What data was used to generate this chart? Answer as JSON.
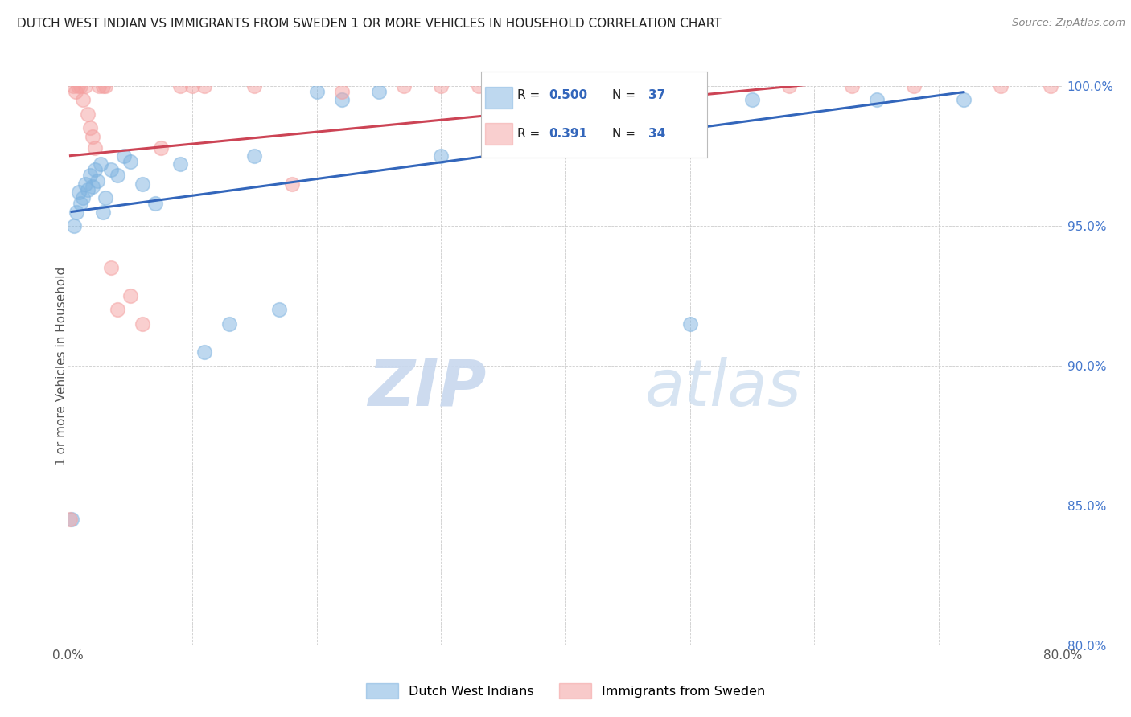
{
  "title": "DUTCH WEST INDIAN VS IMMIGRANTS FROM SWEDEN 1 OR MORE VEHICLES IN HOUSEHOLD CORRELATION CHART",
  "source": "Source: ZipAtlas.com",
  "ylabel": "1 or more Vehicles in Household",
  "xlim": [
    0.0,
    80.0
  ],
  "ylim": [
    80.0,
    100.0
  ],
  "xticks": [
    0.0,
    10.0,
    20.0,
    30.0,
    40.0,
    50.0,
    60.0,
    70.0,
    80.0
  ],
  "yticks": [
    80.0,
    85.0,
    90.0,
    95.0,
    100.0
  ],
  "xtick_labels": [
    "0.0%",
    "",
    "",
    "",
    "",
    "",
    "",
    "",
    "80.0%"
  ],
  "ytick_labels": [
    "80.0%",
    "85.0%",
    "90.0%",
    "95.0%",
    "100.0%"
  ],
  "blue_color": "#7EB3E0",
  "pink_color": "#F4A0A0",
  "blue_line_color": "#3366BB",
  "pink_line_color": "#CC4455",
  "blue_label": "Dutch West Indians",
  "pink_label": "Immigrants from Sweden",
  "blue_R": "0.500",
  "blue_N": "37",
  "pink_R": "0.391",
  "pink_N": "34",
  "blue_scatter_x": [
    0.3,
    0.5,
    0.7,
    0.9,
    1.0,
    1.2,
    1.4,
    1.6,
    1.8,
    2.0,
    2.2,
    2.4,
    2.6,
    2.8,
    3.0,
    3.5,
    4.0,
    4.5,
    5.0,
    6.0,
    7.0,
    9.0,
    11.0,
    13.0,
    15.0,
    17.0,
    20.0,
    22.0,
    25.0,
    30.0,
    35.0,
    40.0,
    45.0,
    50.0,
    55.0,
    65.0,
    72.0
  ],
  "blue_scatter_y": [
    84.5,
    95.0,
    95.5,
    96.2,
    95.8,
    96.0,
    96.5,
    96.3,
    96.8,
    96.4,
    97.0,
    96.6,
    97.2,
    95.5,
    96.0,
    97.0,
    96.8,
    97.5,
    97.3,
    96.5,
    95.8,
    97.2,
    90.5,
    91.5,
    97.5,
    92.0,
    99.8,
    99.5,
    99.8,
    97.5,
    100.0,
    100.0,
    100.0,
    91.5,
    99.5,
    99.5,
    99.5
  ],
  "pink_scatter_x": [
    0.2,
    0.4,
    0.6,
    0.8,
    1.0,
    1.2,
    1.4,
    1.6,
    1.8,
    2.0,
    2.2,
    2.5,
    2.8,
    3.0,
    3.5,
    4.0,
    5.0,
    6.0,
    7.5,
    9.0,
    10.0,
    11.0,
    15.0,
    18.0,
    22.0,
    27.0,
    30.0,
    33.0,
    38.0,
    58.0,
    63.0,
    68.0,
    75.0,
    79.0
  ],
  "pink_scatter_y": [
    84.5,
    100.0,
    99.8,
    100.0,
    100.0,
    99.5,
    100.0,
    99.0,
    98.5,
    98.2,
    97.8,
    100.0,
    100.0,
    100.0,
    93.5,
    92.0,
    92.5,
    91.5,
    97.8,
    100.0,
    100.0,
    100.0,
    100.0,
    96.5,
    99.8,
    100.0,
    100.0,
    100.0,
    100.0,
    100.0,
    100.0,
    100.0,
    100.0,
    100.0
  ],
  "watermark_zip": "ZIP",
  "watermark_atlas": "atlas",
  "background_color": "#FFFFFF",
  "grid_color": "#CCCCCC",
  "title_color": "#222222",
  "axis_label_color": "#555555",
  "tick_color_y": "#4477CC",
  "tick_color_x": "#555555"
}
